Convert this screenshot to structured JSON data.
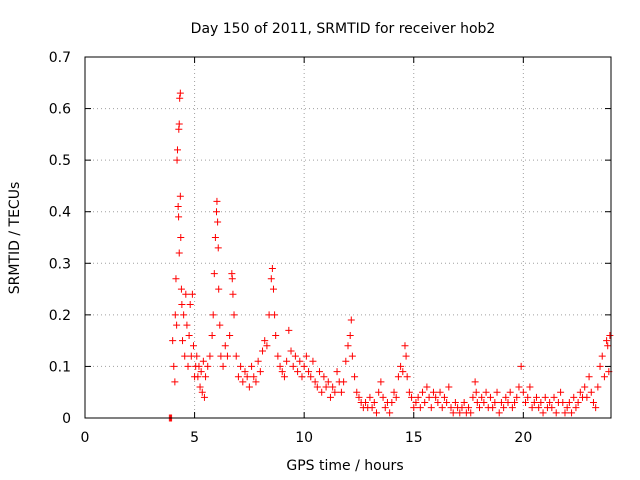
{
  "chart_data": {
    "type": "scatter",
    "title": "Day 150 of 2011, SRMTID for receiver hob2",
    "xlabel": "GPS time / hours",
    "ylabel": "SRMTID / TECUs",
    "xlim": [
      0,
      24
    ],
    "ylim": [
      0,
      0.7
    ],
    "x_ticks": [
      0,
      5,
      10,
      15,
      20
    ],
    "x_tick_labels": [
      "0",
      "5",
      "10",
      "15",
      "20"
    ],
    "y_ticks": [
      0,
      0.1,
      0.2,
      0.3,
      0.4,
      0.5,
      0.6,
      0.7
    ],
    "y_tick_labels": [
      "0",
      "0.1",
      "0.2",
      "0.3",
      "0.4",
      "0.5",
      "0.6",
      "0.7"
    ],
    "grid": true,
    "marker": "+",
    "series": [
      {
        "name": "SRMTID",
        "color": "#ff0000",
        "points": [
          [
            3.85,
            0.0
          ],
          [
            3.9,
            0.0
          ],
          [
            3.95,
            0.0
          ],
          [
            4.0,
            0.15
          ],
          [
            4.05,
            0.1
          ],
          [
            4.1,
            0.07
          ],
          [
            4.12,
            0.2
          ],
          [
            4.15,
            0.27
          ],
          [
            4.18,
            0.18
          ],
          [
            4.2,
            0.5
          ],
          [
            4.22,
            0.52
          ],
          [
            4.25,
            0.41
          ],
          [
            4.27,
            0.39
          ],
          [
            4.28,
            0.56
          ],
          [
            4.3,
            0.57
          ],
          [
            4.3,
            0.32
          ],
          [
            4.32,
            0.62
          ],
          [
            4.35,
            0.63
          ],
          [
            4.35,
            0.43
          ],
          [
            4.37,
            0.35
          ],
          [
            4.4,
            0.25
          ],
          [
            4.42,
            0.22
          ],
          [
            4.45,
            0.15
          ],
          [
            4.5,
            0.2
          ],
          [
            4.55,
            0.12
          ],
          [
            4.6,
            0.24
          ],
          [
            4.65,
            0.18
          ],
          [
            4.7,
            0.1
          ],
          [
            4.75,
            0.16
          ],
          [
            4.8,
            0.22
          ],
          [
            4.85,
            0.12
          ],
          [
            4.9,
            0.24
          ],
          [
            4.95,
            0.14
          ],
          [
            5.0,
            0.08
          ],
          [
            5.05,
            0.1
          ],
          [
            5.1,
            0.12
          ],
          [
            5.15,
            0.08
          ],
          [
            5.2,
            0.1
          ],
          [
            5.25,
            0.06
          ],
          [
            5.3,
            0.09
          ],
          [
            5.35,
            0.05
          ],
          [
            5.4,
            0.11
          ],
          [
            5.45,
            0.04
          ],
          [
            5.5,
            0.08
          ],
          [
            5.6,
            0.1
          ],
          [
            5.7,
            0.12
          ],
          [
            5.8,
            0.16
          ],
          [
            5.85,
            0.2
          ],
          [
            5.9,
            0.28
          ],
          [
            5.95,
            0.35
          ],
          [
            6.0,
            0.4
          ],
          [
            6.02,
            0.42
          ],
          [
            6.05,
            0.38
          ],
          [
            6.08,
            0.33
          ],
          [
            6.1,
            0.25
          ],
          [
            6.15,
            0.18
          ],
          [
            6.2,
            0.12
          ],
          [
            6.3,
            0.1
          ],
          [
            6.4,
            0.14
          ],
          [
            6.5,
            0.12
          ],
          [
            6.6,
            0.16
          ],
          [
            6.7,
            0.28
          ],
          [
            6.72,
            0.27
          ],
          [
            6.75,
            0.24
          ],
          [
            6.8,
            0.2
          ],
          [
            6.9,
            0.12
          ],
          [
            7.0,
            0.08
          ],
          [
            7.1,
            0.1
          ],
          [
            7.2,
            0.07
          ],
          [
            7.3,
            0.09
          ],
          [
            7.4,
            0.08
          ],
          [
            7.5,
            0.06
          ],
          [
            7.6,
            0.1
          ],
          [
            7.7,
            0.08
          ],
          [
            7.8,
            0.07
          ],
          [
            7.9,
            0.11
          ],
          [
            8.0,
            0.09
          ],
          [
            8.1,
            0.13
          ],
          [
            8.2,
            0.15
          ],
          [
            8.3,
            0.14
          ],
          [
            8.4,
            0.2
          ],
          [
            8.5,
            0.27
          ],
          [
            8.55,
            0.29
          ],
          [
            8.6,
            0.25
          ],
          [
            8.65,
            0.2
          ],
          [
            8.7,
            0.16
          ],
          [
            8.8,
            0.12
          ],
          [
            8.9,
            0.1
          ],
          [
            9.0,
            0.09
          ],
          [
            9.1,
            0.08
          ],
          [
            9.2,
            0.11
          ],
          [
            9.3,
            0.17
          ],
          [
            9.4,
            0.13
          ],
          [
            9.5,
            0.1
          ],
          [
            9.6,
            0.12
          ],
          [
            9.7,
            0.09
          ],
          [
            9.8,
            0.11
          ],
          [
            9.9,
            0.08
          ],
          [
            10.0,
            0.1
          ],
          [
            10.1,
            0.12
          ],
          [
            10.2,
            0.09
          ],
          [
            10.3,
            0.08
          ],
          [
            10.4,
            0.11
          ],
          [
            10.5,
            0.07
          ],
          [
            10.6,
            0.06
          ],
          [
            10.7,
            0.09
          ],
          [
            10.8,
            0.05
          ],
          [
            10.9,
            0.08
          ],
          [
            11.0,
            0.06
          ],
          [
            11.1,
            0.07
          ],
          [
            11.2,
            0.04
          ],
          [
            11.3,
            0.06
          ],
          [
            11.4,
            0.05
          ],
          [
            11.5,
            0.09
          ],
          [
            11.6,
            0.07
          ],
          [
            11.7,
            0.05
          ],
          [
            11.8,
            0.07
          ],
          [
            11.9,
            0.11
          ],
          [
            12.0,
            0.14
          ],
          [
            12.1,
            0.16
          ],
          [
            12.15,
            0.19
          ],
          [
            12.2,
            0.12
          ],
          [
            12.3,
            0.08
          ],
          [
            12.4,
            0.05
          ],
          [
            12.5,
            0.04
          ],
          [
            12.6,
            0.03
          ],
          [
            12.7,
            0.02
          ],
          [
            12.8,
            0.03
          ],
          [
            12.9,
            0.02
          ],
          [
            13.0,
            0.04
          ],
          [
            13.1,
            0.02
          ],
          [
            13.2,
            0.03
          ],
          [
            13.3,
            0.01
          ],
          [
            13.4,
            0.05
          ],
          [
            13.5,
            0.07
          ],
          [
            13.6,
            0.04
          ],
          [
            13.7,
            0.02
          ],
          [
            13.8,
            0.03
          ],
          [
            13.9,
            0.01
          ],
          [
            14.0,
            0.03
          ],
          [
            14.1,
            0.05
          ],
          [
            14.2,
            0.04
          ],
          [
            14.3,
            0.08
          ],
          [
            14.4,
            0.1
          ],
          [
            14.5,
            0.09
          ],
          [
            14.6,
            0.14
          ],
          [
            14.65,
            0.12
          ],
          [
            14.7,
            0.08
          ],
          [
            14.8,
            0.05
          ],
          [
            14.9,
            0.04
          ],
          [
            15.0,
            0.02
          ],
          [
            15.1,
            0.03
          ],
          [
            15.2,
            0.04
          ],
          [
            15.3,
            0.02
          ],
          [
            15.4,
            0.05
          ],
          [
            15.5,
            0.03
          ],
          [
            15.6,
            0.06
          ],
          [
            15.7,
            0.04
          ],
          [
            15.8,
            0.02
          ],
          [
            15.9,
            0.05
          ],
          [
            16.0,
            0.04
          ],
          [
            16.1,
            0.03
          ],
          [
            16.2,
            0.05
          ],
          [
            16.3,
            0.02
          ],
          [
            16.4,
            0.04
          ],
          [
            16.5,
            0.03
          ],
          [
            16.6,
            0.06
          ],
          [
            16.7,
            0.02
          ],
          [
            16.8,
            0.01
          ],
          [
            16.9,
            0.03
          ],
          [
            17.0,
            0.02
          ],
          [
            17.1,
            0.01
          ],
          [
            17.2,
            0.02
          ],
          [
            17.3,
            0.03
          ],
          [
            17.4,
            0.01
          ],
          [
            17.5,
            0.02
          ],
          [
            17.6,
            0.01
          ],
          [
            17.7,
            0.04
          ],
          [
            17.8,
            0.07
          ],
          [
            17.85,
            0.05
          ],
          [
            17.9,
            0.03
          ],
          [
            18.0,
            0.02
          ],
          [
            18.1,
            0.04
          ],
          [
            18.2,
            0.03
          ],
          [
            18.3,
            0.05
          ],
          [
            18.4,
            0.02
          ],
          [
            18.5,
            0.04
          ],
          [
            18.6,
            0.02
          ],
          [
            18.7,
            0.03
          ],
          [
            18.8,
            0.05
          ],
          [
            18.9,
            0.01
          ],
          [
            19.0,
            0.03
          ],
          [
            19.1,
            0.02
          ],
          [
            19.2,
            0.04
          ],
          [
            19.3,
            0.03
          ],
          [
            19.4,
            0.05
          ],
          [
            19.5,
            0.02
          ],
          [
            19.6,
            0.03
          ],
          [
            19.7,
            0.04
          ],
          [
            19.8,
            0.06
          ],
          [
            19.9,
            0.1
          ],
          [
            20.0,
            0.05
          ],
          [
            20.1,
            0.03
          ],
          [
            20.2,
            0.04
          ],
          [
            20.3,
            0.06
          ],
          [
            20.4,
            0.02
          ],
          [
            20.5,
            0.03
          ],
          [
            20.6,
            0.04
          ],
          [
            20.7,
            0.02
          ],
          [
            20.8,
            0.03
          ],
          [
            20.9,
            0.01
          ],
          [
            21.0,
            0.04
          ],
          [
            21.1,
            0.02
          ],
          [
            21.2,
            0.03
          ],
          [
            21.3,
            0.02
          ],
          [
            21.4,
            0.04
          ],
          [
            21.5,
            0.01
          ],
          [
            21.6,
            0.03
          ],
          [
            21.7,
            0.05
          ],
          [
            21.8,
            0.03
          ],
          [
            21.9,
            0.01
          ],
          [
            22.0,
            0.02
          ],
          [
            22.1,
            0.03
          ],
          [
            22.2,
            0.01
          ],
          [
            22.3,
            0.04
          ],
          [
            22.4,
            0.02
          ],
          [
            22.5,
            0.03
          ],
          [
            22.6,
            0.05
          ],
          [
            22.7,
            0.04
          ],
          [
            22.8,
            0.06
          ],
          [
            22.9,
            0.04
          ],
          [
            23.0,
            0.08
          ],
          [
            23.1,
            0.05
          ],
          [
            23.2,
            0.03
          ],
          [
            23.3,
            0.02
          ],
          [
            23.4,
            0.06
          ],
          [
            23.5,
            0.1
          ],
          [
            23.6,
            0.12
          ],
          [
            23.7,
            0.08
          ],
          [
            23.8,
            0.15
          ],
          [
            23.85,
            0.14
          ],
          [
            23.9,
            0.09
          ],
          [
            23.95,
            0.16
          ]
        ]
      }
    ]
  }
}
